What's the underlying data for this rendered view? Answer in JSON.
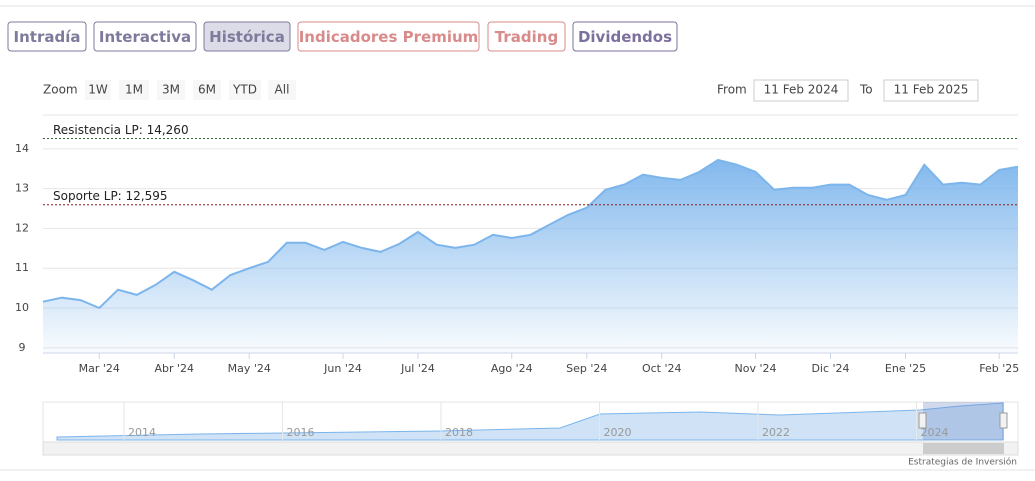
{
  "tabs": [
    "Intradía",
    "Interactiva",
    "Histórica",
    "Indicadores Premium",
    "Trading",
    "Dividendos"
  ],
  "range_selector": {
    "zoom_label": "Zoom",
    "buttons": [
      "1W",
      "1M",
      "3M",
      "6M",
      "YTD",
      "All"
    ],
    "from_label": "From",
    "from_value": "11 Feb 2024",
    "to_label": "To",
    "to_value": "11 Feb 2025"
  },
  "chart_data": {
    "type": "line",
    "categories": [
      null,
      null,
      null,
      "Mar '24",
      null,
      null,
      null,
      "Abr '24",
      null,
      null,
      null,
      "May '24",
      null,
      null,
      null,
      null,
      "Jun '24",
      null,
      null,
      null,
      "Jul '24",
      null,
      null,
      null,
      null,
      "Ago '24",
      null,
      null,
      null,
      "Sep '24",
      null,
      null,
      null,
      "Oct '24",
      null,
      null,
      null,
      null,
      "Nov '24",
      null,
      null,
      null,
      "Dic '24",
      null,
      null,
      null,
      "Ene '25",
      null,
      null,
      null,
      null,
      "Feb '25",
      null
    ],
    "values": [
      10.16,
      10.26,
      10.2,
      10.0,
      10.46,
      10.33,
      10.58,
      10.91,
      10.7,
      10.46,
      10.83,
      11.0,
      11.16,
      11.64,
      11.64,
      11.46,
      11.66,
      11.51,
      11.41,
      11.61,
      11.91,
      11.59,
      11.51,
      11.59,
      11.84,
      11.76,
      11.84,
      12.09,
      12.34,
      12.52,
      12.97,
      13.1,
      13.35,
      13.27,
      13.22,
      13.42,
      13.72,
      13.6,
      13.42,
      12.97,
      13.02,
      13.02,
      13.1,
      13.1,
      12.84,
      12.72,
      12.84,
      13.6,
      13.1,
      13.15,
      13.1,
      13.47,
      13.55
    ],
    "color": "#7cb5ec",
    "ylim": [
      8.87,
      14.85
    ],
    "yticks": [
      9,
      10,
      11,
      12,
      13,
      14
    ],
    "grid": true,
    "annotations": [
      {
        "label": "Resistencia LP: 14,260",
        "value": 14.26,
        "color": "#2e6b2e"
      },
      {
        "label": "Soporte LP: 12,595",
        "value": 12.595,
        "color": "#8b1a1a"
      }
    ]
  },
  "navigator": {
    "labels": [
      "2014",
      "2016",
      "2018",
      "2020",
      "2022",
      "2024"
    ]
  },
  "credit": "Estrategias de Inversión"
}
